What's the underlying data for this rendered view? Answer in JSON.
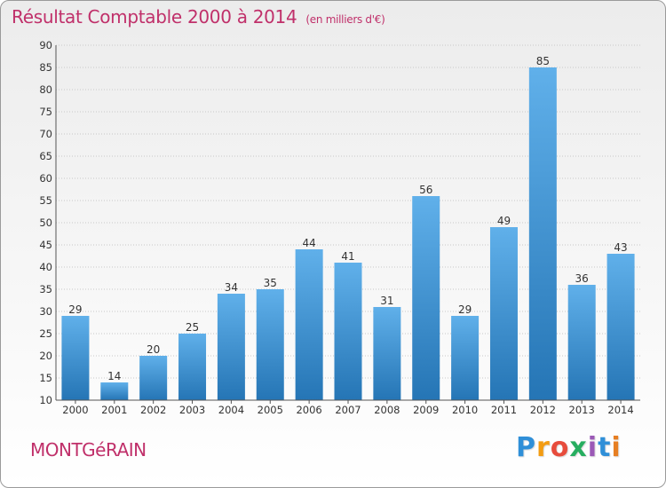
{
  "chart_data": {
    "type": "bar",
    "title": "Résultat Comptable 2000 à 2014",
    "subtitle": "(en milliers d'€)",
    "categories": [
      "2000",
      "2001",
      "2002",
      "2003",
      "2004",
      "2005",
      "2006",
      "2007",
      "2008",
      "2009",
      "2010",
      "2011",
      "2012",
      "2013",
      "2014"
    ],
    "values": [
      29,
      14,
      20,
      25,
      34,
      35,
      44,
      41,
      31,
      56,
      29,
      49,
      85,
      36,
      43
    ],
    "ylim": [
      10,
      90
    ],
    "yticks": [
      10,
      15,
      20,
      25,
      30,
      35,
      40,
      45,
      50,
      55,
      60,
      65,
      70,
      75,
      80,
      85,
      90
    ],
    "xlabel": "",
    "ylabel": "",
    "grid": true
  },
  "footer": {
    "commune": "MONTGéRAIN",
    "logo_letters": [
      "P",
      "r",
      "o",
      "x",
      "i",
      "t",
      "i"
    ],
    "logo_colors": [
      "#2f8fd8",
      "#f39c12",
      "#e74c3c",
      "#27ae60",
      "#9b59b6",
      "#2f8fd8",
      "#e67e22"
    ]
  },
  "colors": {
    "title": "#c0306a",
    "bar_light": "#5aaae6",
    "bar_dark": "#2a78b8",
    "grid": "#c8c8c8"
  }
}
